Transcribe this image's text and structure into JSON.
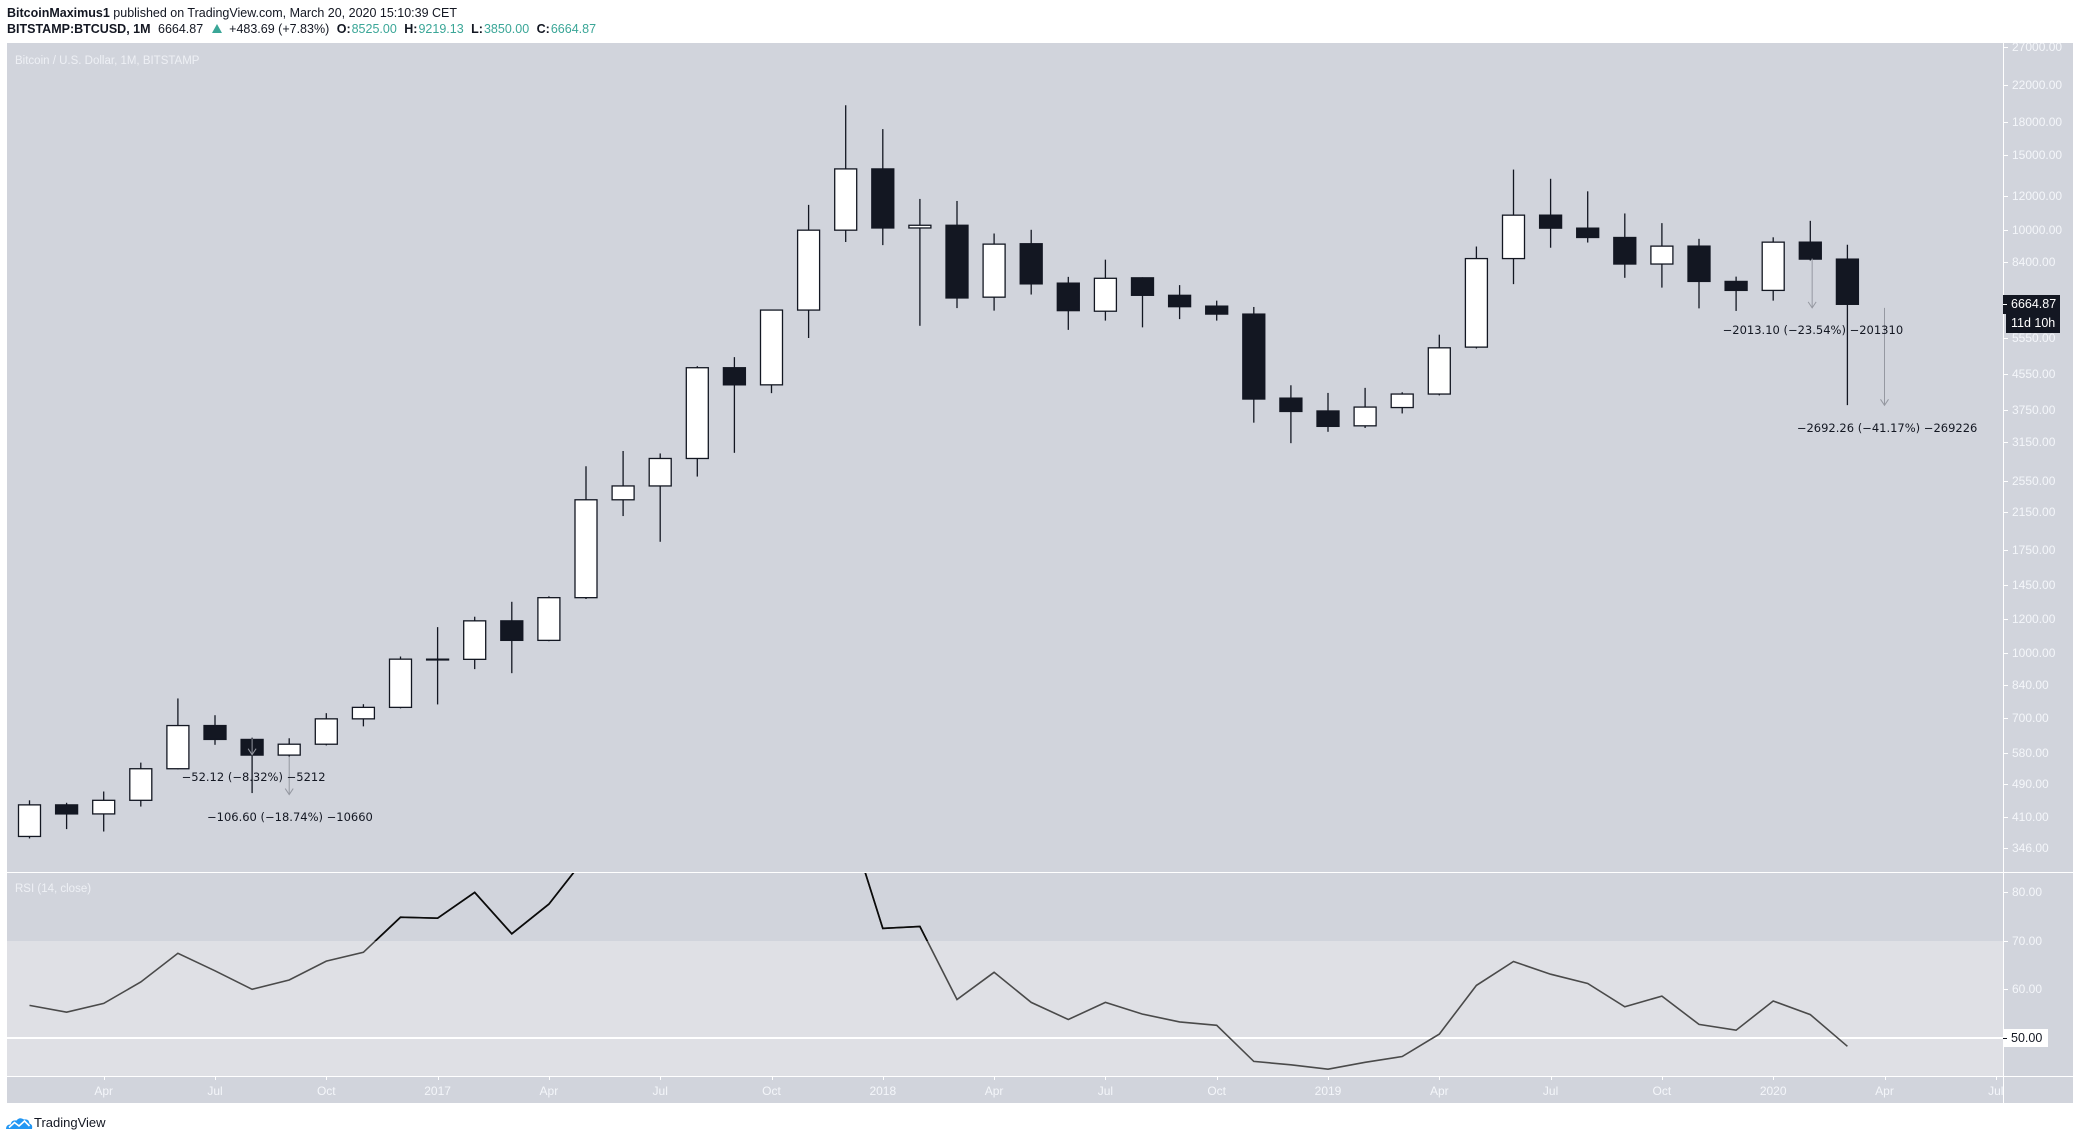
{
  "header": {
    "author": "BitcoinMaximus1",
    "published_text": "published on TradingView.com, March 20, 2020 15:10:39 CET",
    "symbol": "BITSTAMP:BTCUSD, 1M",
    "last_price": "6664.87",
    "change_direction": "up",
    "change": "+483.69 (+7.83%)",
    "ohlc": [
      {
        "label": "O:",
        "value": "8525.00"
      },
      {
        "label": "H:",
        "value": "9219.13"
      },
      {
        "label": "L:",
        "value": "3850.00"
      },
      {
        "label": "C:",
        "value": "6664.87"
      }
    ]
  },
  "chart": {
    "title": "Bitcoin / U.S. Dollar, 1M, BITSTAMP",
    "price_axis": {
      "labels": [
        {
          "text": "27000.00",
          "value": 27000
        },
        {
          "text": "22000.00",
          "value": 22000
        },
        {
          "text": "18000.00",
          "value": 18000
        },
        {
          "text": "15000.00",
          "value": 15000
        },
        {
          "text": "12000.00",
          "value": 12000
        },
        {
          "text": "10000.00",
          "value": 10000
        },
        {
          "text": "8400.00",
          "value": 8400
        },
        {
          "text": "5550.00",
          "value": 5550
        },
        {
          "text": "4550.00",
          "value": 4550
        },
        {
          "text": "3750.00",
          "value": 3750
        },
        {
          "text": "3150.00",
          "value": 3150
        },
        {
          "text": "2550.00",
          "value": 2550
        },
        {
          "text": "2150.00",
          "value": 2150
        },
        {
          "text": "1750.00",
          "value": 1750
        },
        {
          "text": "1450.00",
          "value": 1450
        },
        {
          "text": "1200.00",
          "value": 1200
        },
        {
          "text": "1000.00",
          "value": 1000
        },
        {
          "text": "840.00",
          "value": 840
        },
        {
          "text": "700.00",
          "value": 700
        },
        {
          "text": "580.00",
          "value": 580
        },
        {
          "text": "490.00",
          "value": 490
        },
        {
          "text": "410.00",
          "value": 410
        },
        {
          "text": "346.00",
          "value": 346
        }
      ],
      "current_price": {
        "text": "6664.87",
        "value": 6664.87
      },
      "countdown": "11d 10h"
    },
    "rsi": {
      "title": "RSI (14, close)",
      "axis_labels": [
        {
          "text": "80.00",
          "value": 80
        },
        {
          "text": "70.00",
          "value": 70
        },
        {
          "text": "60.00",
          "value": 60
        }
      ],
      "current": {
        "text": "50.00",
        "value": 50
      },
      "midline": 50
    },
    "time_axis": {
      "labels": [
        {
          "text": "Apr",
          "index": 2
        },
        {
          "text": "Jul",
          "index": 5
        },
        {
          "text": "Oct",
          "index": 8
        },
        {
          "text": "2017",
          "index": 11
        },
        {
          "text": "Apr",
          "index": 14
        },
        {
          "text": "Jul",
          "index": 17
        },
        {
          "text": "Oct",
          "index": 20
        },
        {
          "text": "2018",
          "index": 23
        },
        {
          "text": "Apr",
          "index": 26
        },
        {
          "text": "Jul",
          "index": 29
        },
        {
          "text": "Oct",
          "index": 32
        },
        {
          "text": "2019",
          "index": 35
        },
        {
          "text": "Apr",
          "index": 38
        },
        {
          "text": "Jul",
          "index": 41
        },
        {
          "text": "Oct",
          "index": 44
        },
        {
          "text": "2020",
          "index": 47
        },
        {
          "text": "Apr",
          "index": 50
        },
        {
          "text": "Jul",
          "index": 53
        }
      ]
    },
    "annotations": [
      {
        "text": "−52.12 (−8.32%) −5212",
        "arrow_index": 6,
        "from": 626.4,
        "to": 574.3,
        "text_index": 6.04,
        "text_price": 508.6
      },
      {
        "text": "−106.60 (−18.74%) −10660",
        "arrow_index": 7,
        "from": 568.8,
        "to": 462.2,
        "text_index": 7.02,
        "text_price": 409
      },
      {
        "text": "−2013.10 (−23.54%) −201310",
        "arrow_index": 48.05,
        "from": 8551,
        "to": 6538,
        "text_index": 48.07,
        "text_price": 5797
      },
      {
        "text": "−2692.26 (−41.17%) −269226",
        "arrow_index": 50,
        "from": 6539,
        "to": 3847,
        "text_index": 50.07,
        "text_price": 3400
      }
    ]
  },
  "footer": {
    "brand": "TradingView",
    "logo_icon": "tradingview-cloud-icon"
  },
  "colors": {
    "pane_bg": "#d1d4dc",
    "rsi_band": "#dfe0e5",
    "candle_up": "#ffffff",
    "candle_down": "#131722",
    "candle_border": "#131722",
    "rsi_line": "#4a4a4a",
    "rsi_overbought_line": "#0b0b0b",
    "annotation_arrow": "#9598a1",
    "header_value": "#3aa697",
    "brand_blue": "#2196f3"
  },
  "chart_data": [
    {
      "type": "bar",
      "style": "candlestick",
      "title": "Bitcoin / U.S. Dollar, 1M, BITSTAMP",
      "xlabel": "",
      "ylabel": "",
      "yscale": "log",
      "ylim": [
        346,
        27000
      ],
      "grid": false,
      "categories": [
        "2016-02",
        "2016-03",
        "2016-04",
        "2016-05",
        "2016-06",
        "2016-07",
        "2016-08",
        "2016-09",
        "2016-10",
        "2016-11",
        "2016-12",
        "2017-01",
        "2017-02",
        "2017-03",
        "2017-04",
        "2017-05",
        "2017-06",
        "2017-07",
        "2017-08",
        "2017-09",
        "2017-10",
        "2017-11",
        "2017-12",
        "2018-01",
        "2018-02",
        "2018-03",
        "2018-04",
        "2018-05",
        "2018-06",
        "2018-07",
        "2018-08",
        "2018-09",
        "2018-10",
        "2018-11",
        "2018-12",
        "2019-01",
        "2019-02",
        "2019-03",
        "2019-04",
        "2019-05",
        "2019-06",
        "2019-07",
        "2019-08",
        "2019-09",
        "2019-10",
        "2019-11",
        "2019-12",
        "2020-01",
        "2020-02",
        "2020-03"
      ],
      "series": [
        {
          "name": "open",
          "values": [
            368,
            437,
            416,
            448,
            532,
            673,
            624,
            573,
            608,
            698,
            743,
            966,
            965,
            1190,
            1070,
            1350,
            2300,
            2480,
            2880,
            4720,
            4300,
            6460,
            9980,
            13930,
            10100,
            10250,
            6930,
            9270,
            7480,
            6420,
            7700,
            7000,
            6600,
            6320,
            4000,
            3730,
            3440,
            3800,
            4090,
            5280,
            8550,
            10830,
            10090,
            9590,
            8300,
            9150,
            7550,
            7190,
            9350,
            8525
          ]
        },
        {
          "name": "high",
          "values": [
            448,
            442,
            470,
            550,
            780,
            712,
            630,
            628,
            720,
            756,
            980,
            1150,
            1217,
            1320,
            1360,
            2760,
            3000,
            2960,
            4760,
            5000,
            6470,
            11450,
            19700,
            17300,
            11830,
            11700,
            9800,
            10000,
            7740,
            8500,
            7720,
            7400,
            6800,
            6570,
            4290,
            4115,
            4230,
            4130,
            5650,
            9130,
            13880,
            13200,
            12330,
            10930,
            10370,
            9520,
            7750,
            9600,
            10500,
            9219.13
          ]
        },
        {
          "name": "low",
          "values": [
            364,
            383,
            378,
            433,
            530,
            606,
            466,
            568,
            604,
            670,
            739,
            755,
            915,
            895,
            1065,
            1340,
            2105,
            1830,
            2610,
            2970,
            4110,
            5550,
            9360,
            9200,
            5930,
            6530,
            6440,
            7030,
            5800,
            6100,
            5880,
            6150,
            6100,
            3500,
            3130,
            3330,
            3400,
            3680,
            4060,
            5240,
            7440,
            9070,
            9330,
            7700,
            7300,
            6520,
            6430,
            6800,
            8460,
            3850
          ]
        },
        {
          "name": "close",
          "values": [
            437,
            416,
            448,
            532,
            673,
            624,
            573,
            608,
            698,
            743,
            966,
            965,
            1190,
            1070,
            1350,
            2300,
            2480,
            2880,
            4720,
            4300,
            6460,
            9980,
            13930,
            10100,
            10250,
            6900,
            9250,
            7450,
            6440,
            7680,
            7000,
            6580,
            6320,
            3980,
            3720,
            3430,
            3810,
            4090,
            5260,
            8550,
            10830,
            10090,
            9590,
            8300,
            9150,
            7550,
            7190,
            9350,
            8525,
            6664.87
          ]
        }
      ],
      "last": {
        "open": 8525.0,
        "high": 9219.13,
        "low": 3850.0,
        "close": 6664.87,
        "change": 483.69,
        "change_pct": 7.83
      },
      "annotations": [
        "−52.12 (−8.32%) −5212",
        "−106.60 (−18.74%) −10660",
        "−2013.10 (−23.54%) −201310",
        "−2692.26 (−41.17%) −269226"
      ]
    },
    {
      "type": "line",
      "title": "RSI (14, close)",
      "xlabel": "",
      "ylabel": "",
      "ylim": [
        42,
        84
      ],
      "grid": false,
      "reference_lines": [
        50,
        70
      ],
      "note": "values for 2017-05..2017-12 exceed the visible pane (line clipped at top); those points are estimates",
      "categories": [
        "2016-02",
        "2016-03",
        "2016-04",
        "2016-05",
        "2016-06",
        "2016-07",
        "2016-08",
        "2016-09",
        "2016-10",
        "2016-11",
        "2016-12",
        "2017-01",
        "2017-02",
        "2017-03",
        "2017-04",
        "2017-05",
        "2017-06",
        "2017-07",
        "2017-08",
        "2017-09",
        "2017-10",
        "2017-11",
        "2017-12",
        "2018-01",
        "2018-02",
        "2018-03",
        "2018-04",
        "2018-05",
        "2018-06",
        "2018-07",
        "2018-08",
        "2018-09",
        "2018-10",
        "2018-11",
        "2018-12",
        "2019-01",
        "2019-02",
        "2019-03",
        "2019-04",
        "2019-05",
        "2019-06",
        "2019-07",
        "2019-08",
        "2019-09",
        "2019-10",
        "2019-11",
        "2019-12",
        "2020-01",
        "2020-02",
        "2020-03"
      ],
      "series": [
        {
          "name": "RSI",
          "values": [
            56.7,
            55.3,
            57.1,
            61.5,
            67.4,
            63.8,
            60.0,
            61.9,
            65.8,
            67.6,
            74.8,
            74.6,
            79.9,
            71.4,
            77.5,
            87.2,
            88.0,
            89.0,
            93.0,
            90.0,
            93.0,
            95.0,
            96.7,
            72.5,
            72.9,
            57.9,
            63.5,
            57.3,
            53.8,
            57.3,
            54.9,
            53.3,
            52.6,
            45.2,
            44.5,
            43.6,
            45.0,
            46.2,
            50.8,
            60.8,
            65.7,
            63.1,
            61.2,
            56.4,
            58.6,
            52.8,
            51.6,
            57.6,
            54.8,
            48.3
          ]
        }
      ]
    }
  ]
}
